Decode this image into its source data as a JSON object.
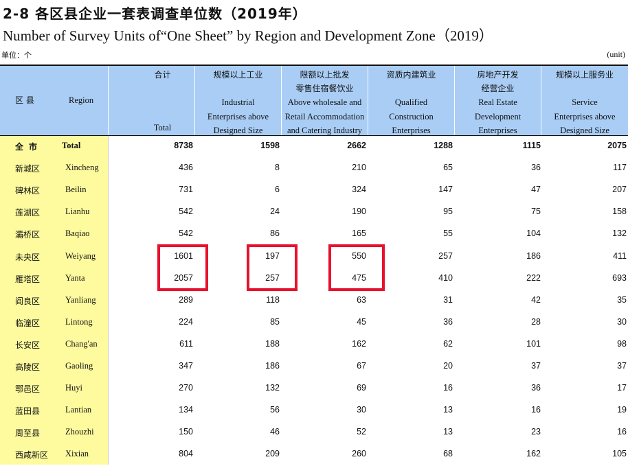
{
  "title_cn": "2-8   各区县企业一套表调查单位数（2019年）",
  "title_en": "Number of Survey Units  of“One  Sheet” by Region  and Development  Zone（2019）",
  "unit_cn": "单位：个",
  "unit_en": "(unit)",
  "headers": {
    "region_cn": "区 县",
    "region_en": "Region",
    "cols": [
      {
        "cn": "合计",
        "en": [
          "Total"
        ]
      },
      {
        "cn": "规模以上工业",
        "en": [
          "Industrial",
          "Enterprises above",
          "Designed Size"
        ]
      },
      {
        "cn": "限额以上批发\n零售住宿餐饮业",
        "en": [
          "Above wholesale and",
          "Retail Accommodation",
          "and Catering Industry"
        ]
      },
      {
        "cn": "资质内建筑业",
        "en": [
          "Qualified",
          "Construction",
          "Enterprises"
        ]
      },
      {
        "cn": "房地产开发\n经营企业",
        "en": [
          "Real Estate",
          "Development",
          "Enterprises"
        ]
      },
      {
        "cn": "规模以上服务业",
        "en": [
          "Service",
          "Enterprises above",
          "Designed Size"
        ]
      }
    ]
  },
  "rows": [
    {
      "cn": "全市",
      "en": "Total",
      "values": [
        "8738",
        "1598",
        "2662",
        "1288",
        "1115",
        "2075"
      ]
    },
    {
      "cn": "新城区",
      "en": "Xincheng",
      "values": [
        "436",
        "8",
        "210",
        "65",
        "36",
        "117"
      ]
    },
    {
      "cn": "碑林区",
      "en": "Beilin",
      "values": [
        "731",
        "6",
        "324",
        "147",
        "47",
        "207"
      ]
    },
    {
      "cn": "莲湖区",
      "en": "Lianhu",
      "values": [
        "542",
        "24",
        "190",
        "95",
        "75",
        "158"
      ]
    },
    {
      "cn": "灞桥区",
      "en": "Baqiao",
      "values": [
        "542",
        "86",
        "165",
        "55",
        "104",
        "132"
      ]
    },
    {
      "cn": "未央区",
      "en": "Weiyang",
      "values": [
        "1601",
        "197",
        "550",
        "257",
        "186",
        "411"
      ]
    },
    {
      "cn": "雁塔区",
      "en": "Yanta",
      "values": [
        "2057",
        "257",
        "475",
        "410",
        "222",
        "693"
      ]
    },
    {
      "cn": "阎良区",
      "en": "Yanliang",
      "values": [
        "289",
        "118",
        "63",
        "31",
        "42",
        "35"
      ]
    },
    {
      "cn": "临潼区",
      "en": "Lintong",
      "values": [
        "224",
        "85",
        "45",
        "36",
        "28",
        "30"
      ]
    },
    {
      "cn": "长安区",
      "en": "Chang'an",
      "values": [
        "611",
        "188",
        "162",
        "62",
        "101",
        "98"
      ]
    },
    {
      "cn": "高陵区",
      "en": "Gaoling",
      "values": [
        "347",
        "186",
        "67",
        "20",
        "37",
        "37"
      ]
    },
    {
      "cn": "鄠邑区",
      "en": "Huyi",
      "values": [
        "270",
        "132",
        "69",
        "16",
        "36",
        "17"
      ]
    },
    {
      "cn": "蓝田县",
      "en": "Lantian",
      "values": [
        "134",
        "56",
        "30",
        "13",
        "16",
        "19"
      ]
    },
    {
      "cn": "周至县",
      "en": "Zhouzhi",
      "values": [
        "150",
        "46",
        "52",
        "13",
        "23",
        "16"
      ]
    },
    {
      "cn": "西咸新区",
      "en": "Xixian",
      "values": [
        "804",
        "209",
        "260",
        "68",
        "162",
        "105"
      ]
    }
  ],
  "colors": {
    "header_bg": "#a9cdf5",
    "region_bg": "#fefb9f",
    "highlight": "#e8112d"
  }
}
